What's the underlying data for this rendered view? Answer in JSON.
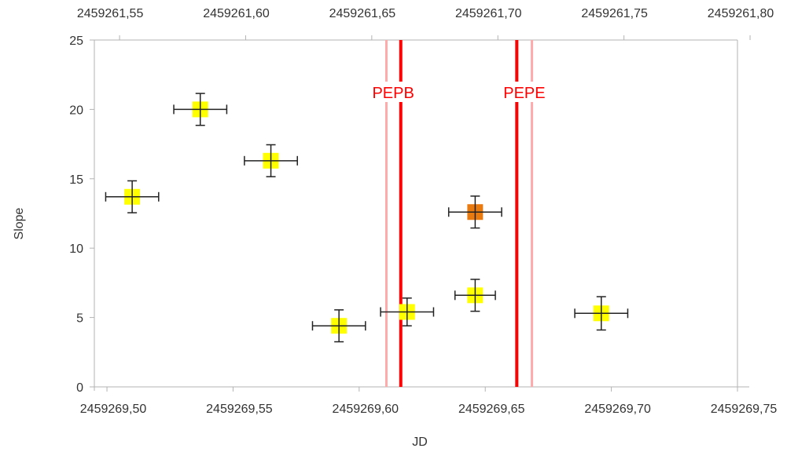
{
  "chart_data": {
    "type": "scatter",
    "xlabel": "JD",
    "ylabel": "Slope",
    "xlim": [
      2459269.495,
      2459269.75
    ],
    "ylim": [
      0,
      25
    ],
    "x_ticks": [
      "2459269,50",
      "2459269,55",
      "2459269,60",
      "2459269,65",
      "2459269,70",
      "2459269,75"
    ],
    "x_tick_values": [
      2459269.5,
      2459269.55,
      2459269.6,
      2459269.65,
      2459269.7,
      2459269.75
    ],
    "x2_ticks": [
      "2459261,55",
      "2459261,60",
      "2459261,65",
      "2459261,70",
      "2459261,75",
      "2459261,80"
    ],
    "x2_tick_values": [
      2459269.505,
      2459269.555,
      2459269.605,
      2459269.655,
      2459269.705,
      2459269.755
    ],
    "y_ticks": [
      "0",
      "5",
      "10",
      "15",
      "20",
      "25"
    ],
    "y_tick_values": [
      0,
      5,
      10,
      15,
      20,
      25
    ],
    "grid": false,
    "points": [
      {
        "x": 2459269.51,
        "y": 13.7,
        "xerr": 0.0105,
        "yerr": 1.15,
        "color": "#ffff00"
      },
      {
        "x": 2459269.537,
        "y": 20.0,
        "xerr": 0.0105,
        "yerr": 1.15,
        "color": "#ffff00"
      },
      {
        "x": 2459269.565,
        "y": 16.3,
        "xerr": 0.0105,
        "yerr": 1.15,
        "color": "#ffff00"
      },
      {
        "x": 2459269.592,
        "y": 4.4,
        "xerr": 0.0105,
        "yerr": 1.15,
        "color": "#ffff00"
      },
      {
        "x": 2459269.619,
        "y": 5.4,
        "xerr": 0.0105,
        "yerr": 1.0,
        "color": "#ffff00"
      },
      {
        "x": 2459269.646,
        "y": 6.6,
        "xerr": 0.008,
        "yerr": 1.15,
        "color": "#ffff00"
      },
      {
        "x": 2459269.646,
        "y": 12.6,
        "xerr": 0.0105,
        "yerr": 1.15,
        "color": "#e87a10"
      },
      {
        "x": 2459269.696,
        "y": 5.3,
        "xerr": 0.0105,
        "yerr": 1.2,
        "color": "#ffff00"
      }
    ],
    "vlines": [
      {
        "label": "PEPB",
        "x": 2459269.6165,
        "side_x": 2459269.6108,
        "label_x": 2459269.6135
      },
      {
        "label": "PEPE",
        "x": 2459269.6625,
        "side_x": 2459269.6685,
        "label_x": 2459269.6655
      }
    ],
    "vline_color": "#ff0000",
    "vline_side_color": "#ffaaaa"
  }
}
